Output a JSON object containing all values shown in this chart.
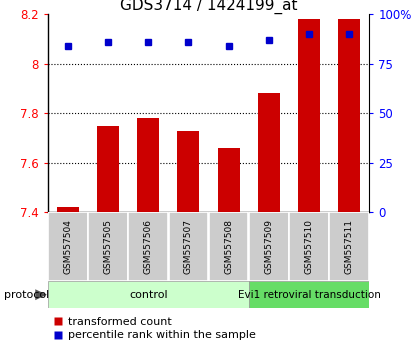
{
  "title": "GDS3714 / 1424199_at",
  "samples": [
    "GSM557504",
    "GSM557505",
    "GSM557506",
    "GSM557507",
    "GSM557508",
    "GSM557509",
    "GSM557510",
    "GSM557511"
  ],
  "transformed_counts": [
    7.42,
    7.75,
    7.78,
    7.73,
    7.66,
    7.88,
    8.18,
    8.18
  ],
  "percentile_ranks": [
    84,
    86,
    86,
    86,
    84,
    87,
    90,
    90
  ],
  "ylim_left": [
    7.4,
    8.2
  ],
  "ylim_right": [
    0,
    100
  ],
  "yticks_left": [
    7.4,
    7.6,
    7.8,
    8.0,
    8.2
  ],
  "yticks_right": [
    0,
    25,
    50,
    75,
    100
  ],
  "bar_color": "#cc0000",
  "dot_color": "#0000cc",
  "n_control": 5,
  "n_transduction": 3,
  "control_label": "control",
  "transduction_label": "Evi1 retroviral transduction",
  "protocol_label": "protocol",
  "legend_bar_label": "transformed count",
  "legend_dot_label": "percentile rank within the sample",
  "control_color_light": "#ccffcc",
  "control_color_dark": "#66dd66",
  "title_fontsize": 11,
  "tick_fontsize": 8.5,
  "sample_fontsize": 6.5,
  "legend_fontsize": 8
}
